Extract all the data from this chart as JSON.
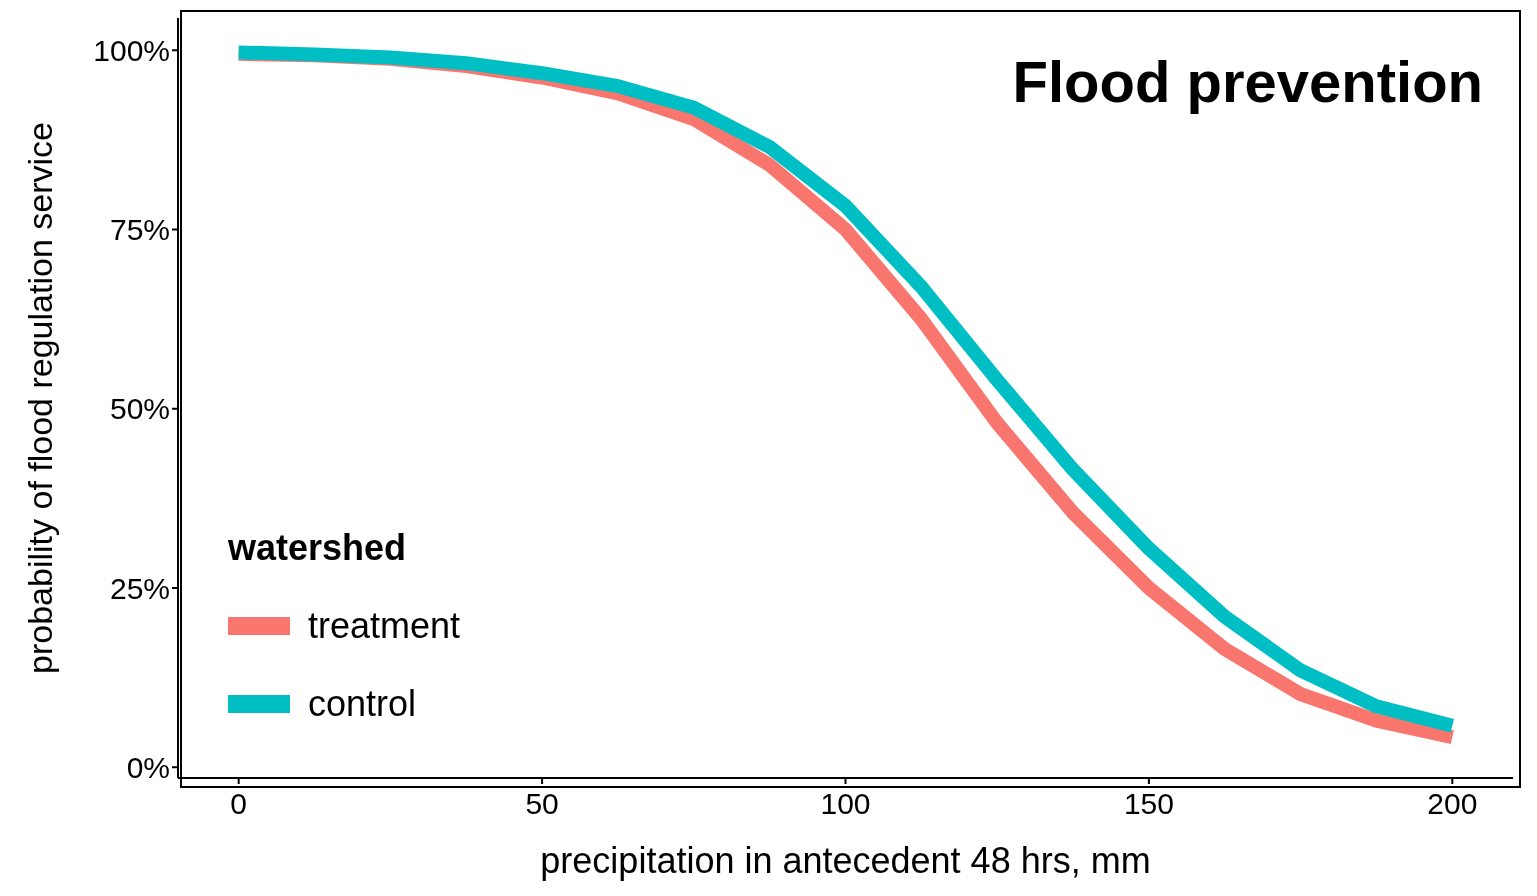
{
  "chart_data": {
    "type": "line",
    "title": "Flood prevention",
    "xlabel": "precipitation in antecedent 48 hrs, mm",
    "ylabel": "probability of flood regulation service",
    "legend_title": "watershed",
    "legend": "bottom left",
    "grid": false,
    "marker": "none",
    "line_style": "solid",
    "xlim": [
      -10,
      210
    ],
    "xticks": [
      0,
      50,
      100,
      150,
      200
    ],
    "ylim": [
      -1.5,
      104.5
    ],
    "yticks": [
      {
        "value": 0,
        "label": "0%"
      },
      {
        "value": 25,
        "label": "25%"
      },
      {
        "value": 50,
        "label": "50%"
      },
      {
        "value": 75,
        "label": "75%"
      },
      {
        "value": 100,
        "label": "100%"
      }
    ],
    "x": [
      0,
      12.5,
      25,
      37.5,
      50,
      62.5,
      75,
      87.5,
      100,
      112.5,
      125,
      137.5,
      150,
      162.5,
      175,
      187.5,
      200
    ],
    "series": [
      {
        "name": "treatment",
        "color": "#f8766d",
        "values": [
          99.5,
          99.3,
          98.8,
          97.8,
          96.2,
          94,
          90.4,
          84,
          75,
          62.5,
          48,
          35.5,
          25,
          16.5,
          10.2,
          6.5,
          4.2
        ]
      },
      {
        "name": "control",
        "color": "#00bfc4",
        "values": [
          99.7,
          99.4,
          99,
          98.2,
          96.8,
          95,
          92,
          86.5,
          78.3,
          67,
          54,
          41.5,
          30.5,
          21,
          13.5,
          8.5,
          5.8
        ]
      }
    ]
  }
}
